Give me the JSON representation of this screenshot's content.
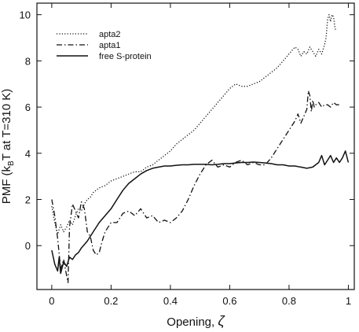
{
  "chart_data": {
    "type": "line",
    "title": "",
    "xlabel": "Opening, ",
    "xlabel_symbol": "ζ",
    "ylabel_parts": [
      "PMF (k",
      "B",
      "T at T=310 K)"
    ],
    "xlim": [
      -0.05,
      1.02
    ],
    "ylim": [
      -1.9,
      10.5
    ],
    "x_ticks": [
      0,
      0.2,
      0.4,
      0.6,
      0.8,
      1
    ],
    "x_tick_labels": [
      "0",
      "0.2",
      "0.4",
      "0.6",
      "0.8",
      "1"
    ],
    "y_ticks": [
      0,
      2,
      4,
      6,
      8,
      10
    ],
    "y_tick_labels": [
      "0",
      "2",
      "4",
      "6",
      "8",
      "10"
    ],
    "grid": false,
    "legend_position": "top-left",
    "series": [
      {
        "name": "apta2",
        "style": "dotted",
        "x": [
          0.0,
          0.01,
          0.02,
          0.03,
          0.04,
          0.05,
          0.06,
          0.07,
          0.08,
          0.09,
          0.1,
          0.11,
          0.12,
          0.13,
          0.14,
          0.16,
          0.18,
          0.2,
          0.22,
          0.24,
          0.26,
          0.28,
          0.3,
          0.32,
          0.34,
          0.36,
          0.38,
          0.4,
          0.42,
          0.44,
          0.46,
          0.48,
          0.5,
          0.52,
          0.54,
          0.56,
          0.58,
          0.6,
          0.62,
          0.64,
          0.66,
          0.68,
          0.7,
          0.72,
          0.74,
          0.76,
          0.78,
          0.8,
          0.82,
          0.83,
          0.84,
          0.85,
          0.86,
          0.87,
          0.88,
          0.89,
          0.9,
          0.91,
          0.92,
          0.925,
          0.93,
          0.935,
          0.94,
          0.945,
          0.95,
          0.955,
          0.96
        ],
        "y": [
          1.7,
          1.0,
          0.5,
          0.9,
          0.6,
          0.8,
          1.1,
          0.9,
          1.3,
          1.6,
          1.5,
          1.8,
          2.0,
          2.1,
          2.3,
          2.5,
          2.6,
          2.8,
          2.9,
          3.0,
          3.1,
          3.2,
          3.2,
          3.4,
          3.5,
          3.7,
          3.9,
          4.1,
          4.4,
          4.6,
          4.8,
          5.0,
          5.3,
          5.6,
          5.9,
          6.2,
          6.5,
          6.8,
          7.0,
          6.9,
          6.9,
          7.0,
          7.1,
          7.3,
          7.5,
          7.7,
          8.0,
          8.3,
          8.6,
          8.5,
          8.2,
          8.4,
          8.3,
          8.6,
          8.4,
          8.2,
          8.5,
          8.3,
          8.7,
          9.0,
          9.8,
          10.0,
          9.7,
          10.0,
          9.9,
          9.4,
          9.3
        ]
      },
      {
        "name": "apta1",
        "style": "dashdot",
        "x": [
          0.0,
          0.01,
          0.02,
          0.03,
          0.04,
          0.05,
          0.055,
          0.06,
          0.07,
          0.08,
          0.09,
          0.1,
          0.11,
          0.12,
          0.13,
          0.14,
          0.15,
          0.16,
          0.17,
          0.18,
          0.2,
          0.22,
          0.24,
          0.26,
          0.28,
          0.3,
          0.32,
          0.34,
          0.36,
          0.38,
          0.4,
          0.42,
          0.44,
          0.46,
          0.48,
          0.5,
          0.52,
          0.54,
          0.56,
          0.58,
          0.6,
          0.62,
          0.64,
          0.66,
          0.68,
          0.7,
          0.72,
          0.74,
          0.76,
          0.78,
          0.8,
          0.82,
          0.83,
          0.84,
          0.85,
          0.86,
          0.865,
          0.87,
          0.875,
          0.88,
          0.885,
          0.89,
          0.9,
          0.91,
          0.92,
          0.93,
          0.94,
          0.95,
          0.96,
          0.97
        ],
        "y": [
          2.0,
          1.3,
          0.3,
          -1.0,
          -0.6,
          -1.3,
          -1.6,
          0.8,
          1.8,
          1.5,
          1.2,
          1.9,
          1.6,
          0.6,
          0.4,
          -0.2,
          -0.4,
          -0.3,
          0.2,
          0.6,
          1.0,
          1.0,
          1.4,
          1.5,
          1.3,
          1.6,
          1.2,
          1.3,
          1.0,
          1.1,
          1.0,
          1.2,
          1.5,
          2.0,
          2.6,
          3.1,
          3.5,
          3.7,
          3.4,
          3.5,
          3.4,
          3.6,
          3.7,
          3.5,
          3.6,
          3.5,
          3.5,
          3.8,
          4.2,
          4.6,
          5.0,
          5.4,
          5.7,
          5.3,
          5.6,
          5.9,
          6.7,
          6.5,
          5.8,
          6.3,
          6.0,
          6.1,
          6.2,
          6.0,
          6.1,
          6.1,
          6.0,
          6.2,
          6.1,
          6.1
        ]
      },
      {
        "name": "free S-protein",
        "style": "solid",
        "x": [
          0.0,
          0.01,
          0.02,
          0.025,
          0.03,
          0.04,
          0.05,
          0.06,
          0.07,
          0.08,
          0.09,
          0.1,
          0.12,
          0.14,
          0.16,
          0.18,
          0.2,
          0.22,
          0.24,
          0.26,
          0.28,
          0.3,
          0.32,
          0.34,
          0.36,
          0.38,
          0.4,
          0.42,
          0.44,
          0.46,
          0.48,
          0.5,
          0.52,
          0.54,
          0.56,
          0.58,
          0.6,
          0.62,
          0.64,
          0.66,
          0.68,
          0.7,
          0.72,
          0.74,
          0.76,
          0.78,
          0.8,
          0.82,
          0.84,
          0.86,
          0.88,
          0.9,
          0.91,
          0.92,
          0.93,
          0.94,
          0.95,
          0.96,
          0.97,
          0.98,
          0.99,
          1.0
        ],
        "y": [
          -0.2,
          -0.8,
          -1.1,
          -0.5,
          -1.2,
          -0.7,
          -0.9,
          -0.5,
          -0.6,
          -0.4,
          -0.3,
          -0.1,
          0.2,
          0.6,
          1.0,
          1.3,
          1.6,
          2.0,
          2.4,
          2.7,
          2.9,
          3.1,
          3.25,
          3.35,
          3.4,
          3.45,
          3.45,
          3.48,
          3.5,
          3.5,
          3.52,
          3.52,
          3.52,
          3.5,
          3.52,
          3.55,
          3.55,
          3.58,
          3.6,
          3.6,
          3.62,
          3.6,
          3.58,
          3.55,
          3.5,
          3.5,
          3.45,
          3.45,
          3.4,
          3.35,
          3.4,
          3.6,
          3.9,
          3.5,
          3.7,
          3.9,
          3.6,
          3.8,
          3.6,
          3.8,
          4.1,
          3.6
        ]
      }
    ]
  }
}
